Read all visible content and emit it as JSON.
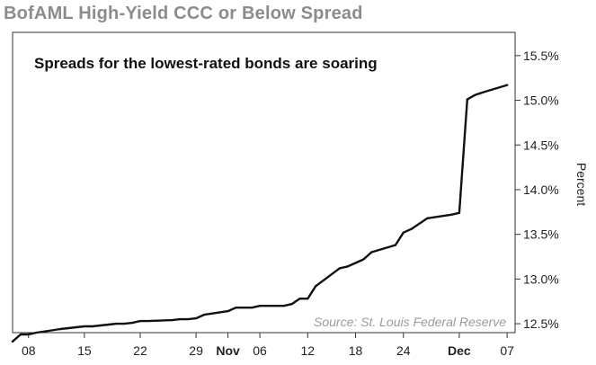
{
  "chart_data": {
    "type": "line",
    "title": "BofAML High-Yield CCC or Below Spread",
    "annotation": "Spreads for the lowest-rated bonds are soaring",
    "source": "Source: St. Louis Federal Reserve",
    "xlabel": "",
    "ylabel": "Percent",
    "x_tick_labels": [
      {
        "label": "08",
        "bold": false,
        "date": "2015-10-08"
      },
      {
        "label": "15",
        "bold": false,
        "date": "2015-10-15"
      },
      {
        "label": "22",
        "bold": false,
        "date": "2015-10-22"
      },
      {
        "label": "29",
        "bold": false,
        "date": "2015-10-29"
      },
      {
        "label": "Nov",
        "bold": true,
        "date": "2015-11-02"
      },
      {
        "label": "06",
        "bold": false,
        "date": "2015-11-06"
      },
      {
        "label": "12",
        "bold": false,
        "date": "2015-11-12"
      },
      {
        "label": "18",
        "bold": false,
        "date": "2015-11-18"
      },
      {
        "label": "24",
        "bold": false,
        "date": "2015-11-24"
      },
      {
        "label": "Dec",
        "bold": true,
        "date": "2015-12-01"
      },
      {
        "label": "07",
        "bold": false,
        "date": "2015-12-07"
      }
    ],
    "y_tick_labels": [
      "12.5%",
      "13.0%",
      "13.5%",
      "14.0%",
      "14.5%",
      "15.0%",
      "15.5%"
    ],
    "y_ticks": [
      12.5,
      13.0,
      13.5,
      14.0,
      14.5,
      15.0,
      15.5
    ],
    "xlim": [
      "2015-10-06",
      "2015-12-08"
    ],
    "ylim": [
      12.4,
      15.76
    ],
    "grid": false,
    "legend": "none",
    "series": [
      {
        "color": "#111111",
        "x": [
          "2015-10-06",
          "2015-10-07",
          "2015-10-08",
          "2015-10-09",
          "2015-10-12",
          "2015-10-13",
          "2015-10-14",
          "2015-10-15",
          "2015-10-16",
          "2015-10-19",
          "2015-10-20",
          "2015-10-21",
          "2015-10-22",
          "2015-10-23",
          "2015-10-26",
          "2015-10-27",
          "2015-10-28",
          "2015-10-29",
          "2015-10-30",
          "2015-11-02",
          "2015-11-03",
          "2015-11-04",
          "2015-11-05",
          "2015-11-06",
          "2015-11-09",
          "2015-11-10",
          "2015-11-11",
          "2015-11-12",
          "2015-11-13",
          "2015-11-16",
          "2015-11-17",
          "2015-11-18",
          "2015-11-19",
          "2015-11-20",
          "2015-11-23",
          "2015-11-24",
          "2015-11-25",
          "2015-11-27",
          "2015-11-30",
          "2015-12-01",
          "2015-12-02",
          "2015-12-03",
          "2015-12-04",
          "2015-12-07"
        ],
        "values": [
          12.3,
          12.38,
          12.38,
          12.4,
          12.44,
          12.45,
          12.46,
          12.47,
          12.47,
          12.5,
          12.5,
          12.51,
          12.53,
          12.53,
          12.54,
          12.55,
          12.55,
          12.56,
          12.6,
          12.64,
          12.68,
          12.68,
          12.68,
          12.7,
          12.7,
          12.72,
          12.78,
          12.78,
          12.92,
          13.12,
          13.14,
          13.18,
          13.22,
          13.3,
          13.38,
          13.52,
          13.56,
          13.68,
          13.72,
          13.74,
          15.01,
          15.06,
          15.09,
          15.17
        ]
      }
    ]
  }
}
